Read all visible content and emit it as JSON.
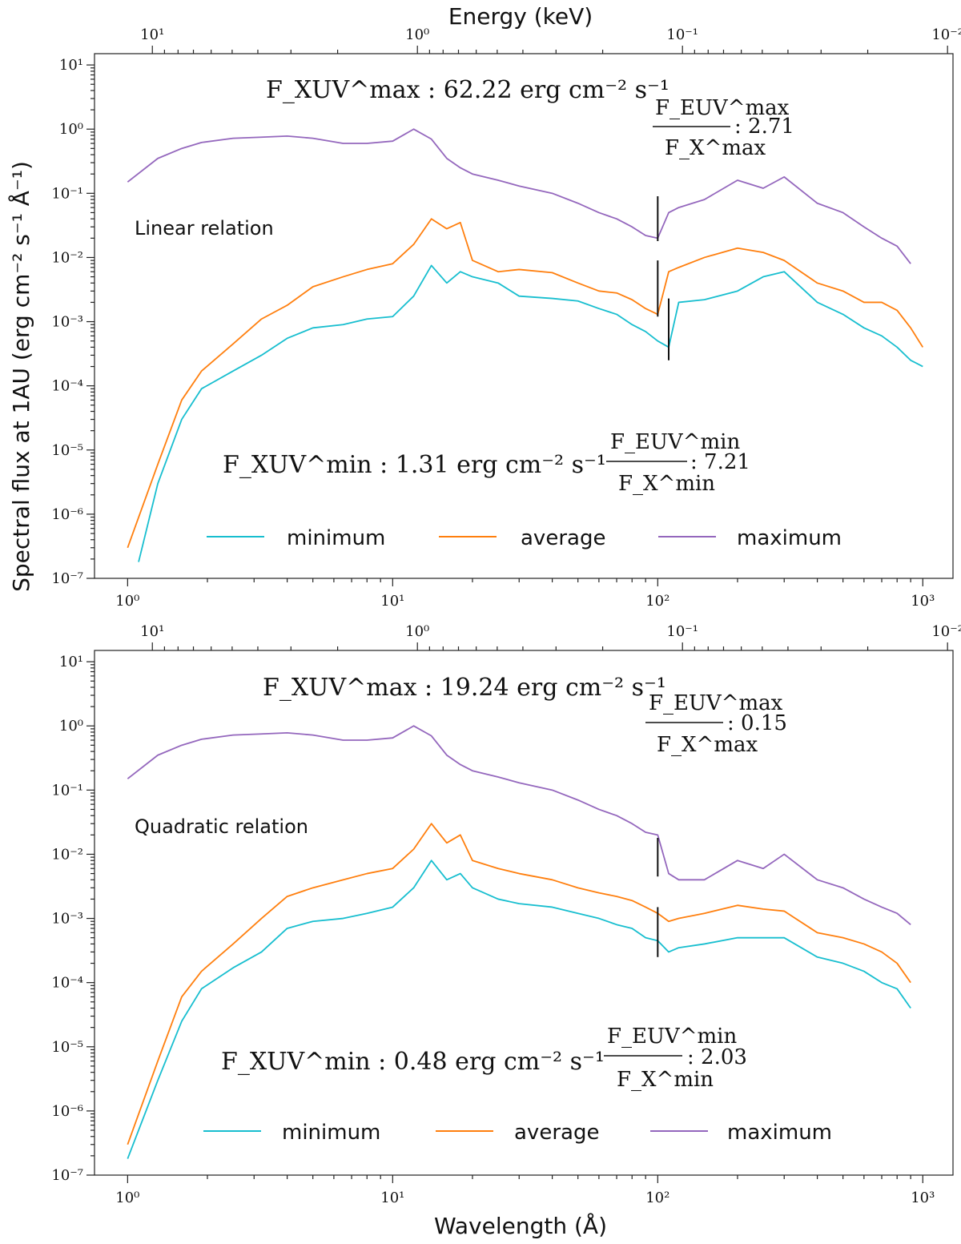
{
  "axes": {
    "energy_label": "Energy (keV)",
    "ylabel": "Spectral flux at 1AU (erg cm⁻² s⁻¹ Å⁻¹)",
    "xlabel": "Wavelength (Å)",
    "x_ticks": [
      {
        "value": 1,
        "label": "10⁰"
      },
      {
        "value": 10,
        "label": "10¹"
      },
      {
        "value": 100,
        "label": "10²"
      },
      {
        "value": 1000,
        "label": "10³"
      }
    ],
    "energy_ticks": [
      {
        "value": 10,
        "label": "10¹"
      },
      {
        "value": 1,
        "label": "10⁰"
      },
      {
        "value": 0.1,
        "label": "10⁻¹"
      },
      {
        "value": 0.01,
        "label": "10⁻²"
      }
    ],
    "y_ticks": [
      {
        "value": 10,
        "label": "10¹"
      },
      {
        "value": 1,
        "label": "10⁰"
      },
      {
        "value": 0.1,
        "label": "10⁻¹"
      },
      {
        "value": 0.01,
        "label": "10⁻²"
      },
      {
        "value": 0.001,
        "label": "10⁻³"
      },
      {
        "value": 0.0001,
        "label": "10⁻⁴"
      },
      {
        "value": 1e-05,
        "label": "10⁻⁵"
      },
      {
        "value": 1e-06,
        "label": "10⁻⁶"
      },
      {
        "value": 1e-07,
        "label": "10⁻⁷"
      }
    ]
  },
  "legend": [
    "minimum",
    "average",
    "maximum"
  ],
  "colors": {
    "minimum": "#17becf",
    "average": "#ff7f0e",
    "maximum": "#9467bd",
    "frame": "#222222"
  },
  "chart_data": [
    {
      "type": "line",
      "label": "Linear relation",
      "xscale": "log",
      "yscale": "log",
      "xlim": [
        0.75,
        1300
      ],
      "ylim": [
        1e-07,
        15
      ],
      "flux_max_text": "F_XUV^max : 62.22 erg cm⁻² s⁻¹",
      "flux_min_text": "F_XUV^min : 1.31 erg cm⁻² s⁻¹",
      "ratio_max": {
        "num": "F_EUV^max",
        "den": "F_X^max",
        "value": ": 2.71"
      },
      "ratio_min": {
        "num": "F_EUV^min",
        "den": "F_X^min",
        "value": ": 7.21"
      },
      "break_markers": [
        {
          "x": 100,
          "y_from": 0.018,
          "y_to": 0.09
        },
        {
          "x": 100,
          "y_from": 0.0012,
          "y_to": 0.009
        },
        {
          "x": 110,
          "y_from": 0.00025,
          "y_to": 0.0023
        }
      ],
      "series": [
        {
          "name": "minimum",
          "x": [
            1.1,
            1.3,
            1.6,
            1.9,
            2.5,
            3.2,
            4.0,
            5.0,
            6.5,
            8.0,
            10,
            12,
            14,
            16,
            18,
            20,
            25,
            30,
            40,
            50,
            60,
            70,
            80,
            90,
            100,
            110,
            120,
            150,
            200,
            250,
            300,
            400,
            500,
            600,
            700,
            800,
            900,
            1000
          ],
          "values": [
            1.8e-07,
            3e-06,
            3e-05,
            9e-05,
            0.00017,
            0.0003,
            0.00055,
            0.0008,
            0.0009,
            0.0011,
            0.0012,
            0.0025,
            0.0075,
            0.004,
            0.006,
            0.005,
            0.004,
            0.0025,
            0.0023,
            0.0021,
            0.0016,
            0.0013,
            0.0009,
            0.0007,
            0.0005,
            0.0004,
            0.002,
            0.0022,
            0.003,
            0.005,
            0.006,
            0.002,
            0.0013,
            0.0008,
            0.0006,
            0.0004,
            0.00025,
            0.0002
          ]
        },
        {
          "name": "average",
          "x": [
            1.0,
            1.3,
            1.6,
            1.9,
            2.5,
            3.2,
            4.0,
            5.0,
            6.5,
            8.0,
            10,
            12,
            14,
            16,
            18,
            20,
            25,
            30,
            40,
            50,
            60,
            70,
            80,
            90,
            100,
            110,
            120,
            150,
            200,
            250,
            300,
            400,
            500,
            600,
            700,
            800,
            900,
            1000
          ],
          "values": [
            3e-07,
            6e-06,
            6e-05,
            0.00017,
            0.00045,
            0.0011,
            0.0018,
            0.0035,
            0.005,
            0.0065,
            0.008,
            0.016,
            0.04,
            0.028,
            0.035,
            0.009,
            0.006,
            0.0065,
            0.0058,
            0.004,
            0.003,
            0.0028,
            0.0022,
            0.0016,
            0.0013,
            0.006,
            0.007,
            0.01,
            0.014,
            0.012,
            0.009,
            0.004,
            0.003,
            0.002,
            0.002,
            0.0015,
            0.0008,
            0.0004
          ]
        },
        {
          "name": "maximum",
          "x": [
            1.0,
            1.3,
            1.6,
            1.9,
            2.5,
            3.2,
            4.0,
            5.0,
            6.5,
            8.0,
            10,
            12,
            14,
            16,
            18,
            20,
            25,
            30,
            40,
            50,
            60,
            70,
            80,
            90,
            100,
            110,
            120,
            150,
            200,
            250,
            300,
            400,
            500,
            600,
            700,
            800,
            900
          ],
          "values": [
            0.15,
            0.35,
            0.5,
            0.62,
            0.72,
            0.75,
            0.78,
            0.72,
            0.6,
            0.6,
            0.65,
            1.0,
            0.7,
            0.35,
            0.25,
            0.2,
            0.16,
            0.13,
            0.1,
            0.07,
            0.05,
            0.04,
            0.03,
            0.022,
            0.02,
            0.05,
            0.06,
            0.08,
            0.16,
            0.12,
            0.18,
            0.07,
            0.05,
            0.03,
            0.02,
            0.015,
            0.008
          ]
        }
      ]
    },
    {
      "type": "line",
      "label": "Quadratic relation",
      "xscale": "log",
      "yscale": "log",
      "xlim": [
        0.75,
        1300
      ],
      "ylim": [
        1e-07,
        15
      ],
      "flux_max_text": "F_XUV^max : 19.24 erg cm⁻² s⁻¹",
      "flux_min_text": "F_XUV^min : 0.48 erg cm⁻² s⁻¹",
      "ratio_max": {
        "num": "F_EUV^max",
        "den": "F_X^max",
        "value": ": 0.15"
      },
      "ratio_min": {
        "num": "F_EUV^min",
        "den": "F_X^min",
        "value": ": 2.03"
      },
      "break_markers": [
        {
          "x": 100,
          "y_from": 0.0045,
          "y_to": 0.018
        },
        {
          "x": 100,
          "y_from": 0.00025,
          "y_to": 0.0015
        }
      ],
      "series": [
        {
          "name": "minimum",
          "x": [
            1.0,
            1.3,
            1.6,
            1.9,
            2.5,
            3.2,
            4.0,
            5.0,
            6.5,
            8.0,
            10,
            12,
            14,
            16,
            18,
            20,
            25,
            30,
            40,
            50,
            60,
            70,
            80,
            90,
            100,
            110,
            120,
            150,
            200,
            250,
            300,
            400,
            500,
            600,
            700,
            800,
            900
          ],
          "values": [
            1.8e-07,
            3e-06,
            2.5e-05,
            8e-05,
            0.00017,
            0.0003,
            0.0007,
            0.0009,
            0.001,
            0.0012,
            0.0015,
            0.003,
            0.008,
            0.004,
            0.005,
            0.003,
            0.002,
            0.0017,
            0.0015,
            0.0012,
            0.001,
            0.0008,
            0.0007,
            0.0005,
            0.00045,
            0.0003,
            0.00035,
            0.0004,
            0.0005,
            0.0005,
            0.0005,
            0.00025,
            0.0002,
            0.00015,
            0.0001,
            8e-05,
            4e-05
          ]
        },
        {
          "name": "average",
          "x": [
            1.0,
            1.3,
            1.6,
            1.9,
            2.5,
            3.2,
            4.0,
            5.0,
            6.5,
            8.0,
            10,
            12,
            14,
            16,
            18,
            20,
            25,
            30,
            40,
            50,
            60,
            70,
            80,
            90,
            100,
            110,
            120,
            150,
            200,
            250,
            300,
            400,
            500,
            600,
            700,
            800,
            900
          ],
          "values": [
            3e-07,
            6e-06,
            6e-05,
            0.00015,
            0.0004,
            0.001,
            0.0022,
            0.003,
            0.004,
            0.005,
            0.006,
            0.012,
            0.03,
            0.015,
            0.02,
            0.008,
            0.006,
            0.005,
            0.004,
            0.003,
            0.0025,
            0.0022,
            0.0019,
            0.0015,
            0.0012,
            0.0009,
            0.001,
            0.0012,
            0.0016,
            0.0014,
            0.0013,
            0.0006,
            0.0005,
            0.0004,
            0.0003,
            0.0002,
            0.0001
          ]
        },
        {
          "name": "maximum",
          "x": [
            1.0,
            1.3,
            1.6,
            1.9,
            2.5,
            3.2,
            4.0,
            5.0,
            6.5,
            8.0,
            10,
            12,
            14,
            16,
            18,
            20,
            25,
            30,
            40,
            50,
            60,
            70,
            80,
            90,
            100,
            110,
            120,
            150,
            200,
            250,
            300,
            400,
            500,
            600,
            700,
            800,
            900
          ],
          "values": [
            0.15,
            0.35,
            0.5,
            0.62,
            0.72,
            0.75,
            0.78,
            0.72,
            0.6,
            0.6,
            0.65,
            1.0,
            0.7,
            0.35,
            0.25,
            0.2,
            0.16,
            0.13,
            0.1,
            0.07,
            0.05,
            0.04,
            0.03,
            0.022,
            0.02,
            0.005,
            0.004,
            0.004,
            0.008,
            0.006,
            0.01,
            0.004,
            0.003,
            0.002,
            0.0015,
            0.0012,
            0.0008
          ]
        }
      ]
    }
  ]
}
